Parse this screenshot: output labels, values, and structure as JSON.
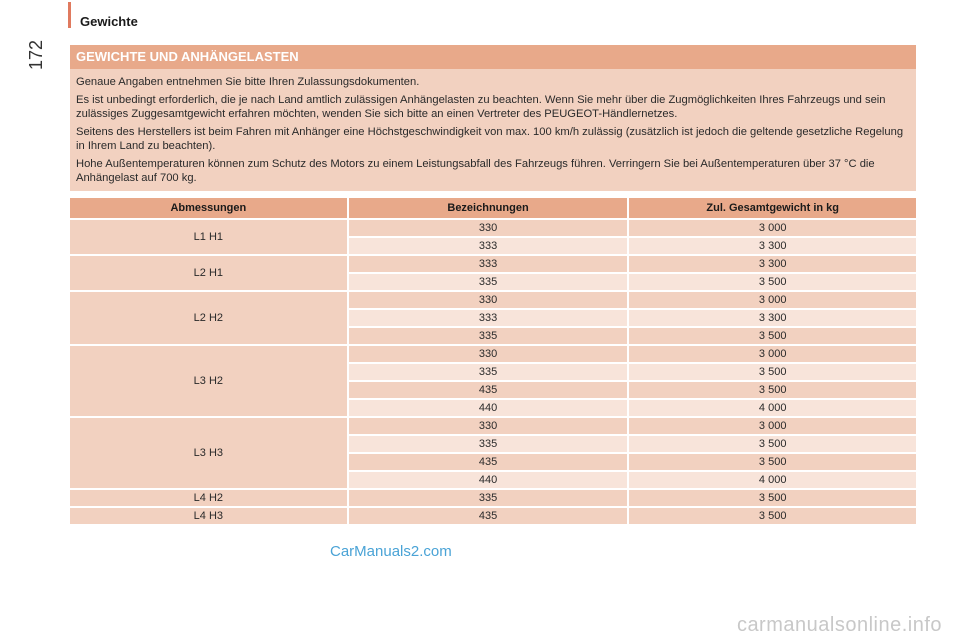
{
  "header": {
    "section": "Gewichte",
    "page_number": "172"
  },
  "notice": {
    "title": "GEWICHTE UND ANHÄNGELASTEN",
    "paragraphs": [
      "Genaue Angaben entnehmen Sie bitte Ihren Zulassungsdokumenten.",
      "Es ist unbedingt erforderlich, die je nach Land amtlich zulässigen Anhängelasten zu beachten. Wenn Sie mehr über die Zugmöglichkeiten Ihres Fahrzeugs und sein zulässiges Zuggesamtgewicht erfahren möchten, wenden Sie sich bitte an einen Vertreter des PEUGEOT-Händlernetzes.",
      "Seitens des Herstellers ist beim Fahren mit Anhänger eine Höchstgeschwindigkeit von max. 100 km/h zulässig (zusätzlich ist jedoch die geltende gesetzliche Regelung in Ihrem Land zu beachten).",
      "Hohe Außentemperaturen können zum Schutz des Motors zu einem Leistungsabfall des Fahrzeugs führen. Verringern Sie bei Außentemperaturen über 37 °C die Anhängelast auf 700 kg."
    ]
  },
  "table": {
    "headers": [
      "Abmessungen",
      "Bezeichnungen",
      "Zul. Gesamtgewicht in kg"
    ],
    "groups": [
      {
        "dim": "L1 H1",
        "rows": [
          [
            "330",
            "3 000"
          ],
          [
            "333",
            "3 300"
          ]
        ]
      },
      {
        "dim": "L2 H1",
        "rows": [
          [
            "333",
            "3 300"
          ],
          [
            "335",
            "3 500"
          ]
        ]
      },
      {
        "dim": "L2 H2",
        "rows": [
          [
            "330",
            "3 000"
          ],
          [
            "333",
            "3 300"
          ],
          [
            "335",
            "3 500"
          ]
        ]
      },
      {
        "dim": "L3 H2",
        "rows": [
          [
            "330",
            "3 000"
          ],
          [
            "335",
            "3 500"
          ],
          [
            "435",
            "3 500"
          ],
          [
            "440",
            "4 000"
          ]
        ]
      },
      {
        "dim": "L3 H3",
        "rows": [
          [
            "330",
            "3 000"
          ],
          [
            "335",
            "3 500"
          ],
          [
            "435",
            "3 500"
          ],
          [
            "440",
            "4 000"
          ]
        ]
      },
      {
        "dim": "L4 H2",
        "rows": [
          [
            "335",
            "3 500"
          ]
        ]
      },
      {
        "dim": "L4 H3",
        "rows": [
          [
            "435",
            "3 500"
          ]
        ]
      }
    ]
  },
  "watermarks": {
    "center": "CarManuals2.com",
    "footer": "carmanualsonline.info"
  }
}
